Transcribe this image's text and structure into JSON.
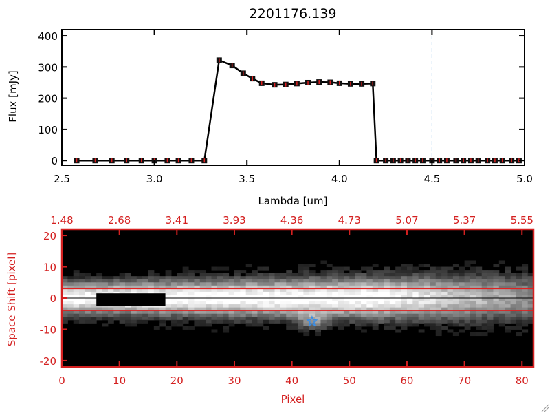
{
  "chart_data": [
    {
      "type": "line",
      "title": "2201176.139",
      "xlabel": "Lambda [um]",
      "ylabel": "Flux [mJy]",
      "xlim": [
        2.5,
        5.0
      ],
      "ylim": [
        -15,
        420
      ],
      "xticks": [
        "2.5",
        "3.0",
        "3.5",
        "4.0",
        "4.5",
        "5.0"
      ],
      "xtick_values": [
        2.5,
        3.0,
        3.5,
        4.0,
        4.5,
        5.0
      ],
      "yticks": [
        "0",
        "100",
        "200",
        "300",
        "400"
      ],
      "ytick_values": [
        0,
        100,
        200,
        300,
        400
      ],
      "vline": 4.5,
      "series": [
        {
          "name": "flux",
          "x": [
            2.58,
            2.68,
            2.77,
            2.85,
            2.93,
            3.0,
            3.07,
            3.13,
            3.2,
            3.27,
            3.35,
            3.42,
            3.48,
            3.53,
            3.58,
            3.65,
            3.71,
            3.77,
            3.83,
            3.89,
            3.95,
            4.0,
            4.06,
            4.12,
            4.18,
            4.2,
            4.25,
            4.29,
            4.33,
            4.37,
            4.41,
            4.45,
            4.5,
            4.54,
            4.58,
            4.63,
            4.67,
            4.71,
            4.75,
            4.8,
            4.84,
            4.88,
            4.93,
            4.97
          ],
          "y": [
            0,
            0,
            0,
            0,
            0,
            0,
            0,
            0,
            0,
            0,
            322,
            305,
            280,
            263,
            248,
            243,
            244,
            247,
            250,
            252,
            251,
            248,
            246,
            246,
            247,
            0,
            0,
            0,
            0,
            0,
            0,
            0,
            0,
            0,
            0,
            0,
            0,
            0,
            0,
            0,
            0,
            0,
            0,
            0
          ]
        }
      ]
    },
    {
      "type": "heatmap",
      "xlabel": "Pixel",
      "ylabel": "Space Shift [pixel]",
      "xlim": [
        0,
        82
      ],
      "ylim": [
        -22,
        22
      ],
      "xticks": [
        "0",
        "10",
        "20",
        "30",
        "40",
        "50",
        "60",
        "70",
        "80"
      ],
      "xtick_values": [
        0,
        10,
        20,
        30,
        40,
        50,
        60,
        70,
        80
      ],
      "top_xticks": [
        "1.48",
        "2.68",
        "3.41",
        "3.93",
        "4.36",
        "4.73",
        "5.07",
        "5.37",
        "5.55"
      ],
      "yticks": [
        "20",
        "10",
        "0",
        "-10",
        "-20"
      ],
      "ytick_values": [
        20,
        10,
        0,
        -10,
        -20
      ],
      "aperture_lines": [
        3,
        -4
      ],
      "center_line": 0,
      "marker": {
        "x": 43.5,
        "y": -7.5,
        "symbol": "star"
      }
    }
  ],
  "colors": {
    "axis_red": "#d42020",
    "marker_blue": "#3a8ee6",
    "vline_blue": "#4a90d9"
  }
}
